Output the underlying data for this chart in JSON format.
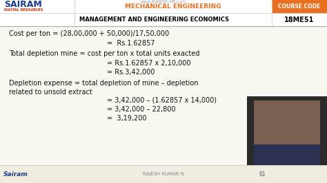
{
  "sairam_text": "SAIRAM",
  "sairam_color": "#1a3a8c",
  "digital_resources": "DIGITAL RESOURCES",
  "digital_resources_color": "#cc2200",
  "mech_eng": "MECHANICAL ENGINEERING",
  "mech_eng_color": "#e87020",
  "course_label": "COURSE CODE",
  "course_code": "18ME51",
  "subject": "MANAGEMENT AND ENGINEERING ECONOMICS",
  "orange_box_color": "#e87020",
  "bandicam_text": "www.BANDICAM.com",
  "line1": "Cost per ton = (28,00,000 + 50,000)/17,50,000",
  "line2": "=  Rs.1.62857",
  "line3": "Total depletion mine = cost per ton x total units exacted",
  "line4": "= Rs.1.62857 x 2,10,000",
  "line5": "= Rs.3,42,000",
  "line6": "Depletion expense = total depletion of mine – depletion",
  "line7": "related to unsold extract",
  "line8": "= 3,42,000 – (1.62857 x 14,000)",
  "line9": "= 3,42,000 – 22,800",
  "line10": "=  3,19,200",
  "footer_name": "RAJESH KUMAR N",
  "footer_page": "61",
  "body_bg": "#f0ede0",
  "header_bg": "#ffffff",
  "content_bg": "#f8f7f0",
  "header_divider_color": "#cccccc",
  "text_color": "#111111",
  "footer_text_color": "#888888"
}
